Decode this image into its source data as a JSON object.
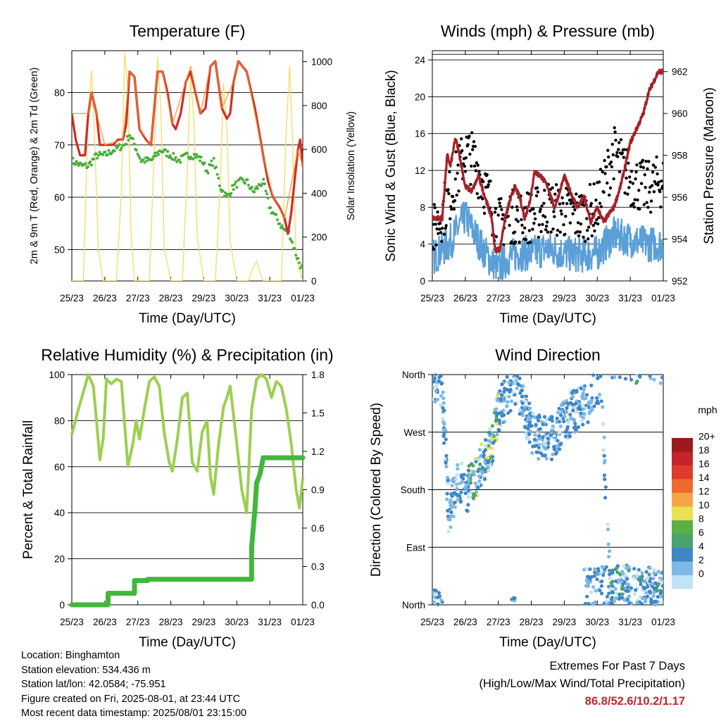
{
  "x_ticks": [
    "25/23",
    "26/23",
    "27/23",
    "28/23",
    "29/23",
    "30/23",
    "31/23",
    "01/23"
  ],
  "panels": {
    "temperature": {
      "title": "Temperature (F)",
      "xlabel": "Time (Day/UTC)",
      "ylabel": "2m & 9m T (Red, Orange) & 2m Td (Green)",
      "y2label": "Solar Insolation (Yellow)",
      "y_ticks": [
        "50",
        "60",
        "70",
        "80"
      ],
      "y2_ticks": [
        "0",
        "200",
        "400",
        "600",
        "800",
        "1000"
      ]
    },
    "winds": {
      "title": "Winds (mph) & Pressure (mb)",
      "xlabel": "Time (Day/UTC)",
      "ylabel": "Sonic Wind & Gust (Blue, Black)",
      "y2label": "Station Pressure (Maroon)",
      "y_ticks": [
        "0",
        "4",
        "8",
        "12",
        "16",
        "20",
        "24"
      ],
      "y2_ticks": [
        "952",
        "954",
        "956",
        "958",
        "960",
        "962"
      ]
    },
    "humidity": {
      "title": "Relative Humidity (%) & Precipitation (in)",
      "xlabel": "Time (Day/UTC)",
      "ylabel": "Percent & Total Rainfall",
      "y_ticks": [
        "0",
        "20",
        "40",
        "60",
        "80",
        "100"
      ],
      "y2_ticks": [
        "0.0",
        "0.3",
        "0.6",
        "0.9",
        "1.2",
        "1.5",
        "1.8"
      ]
    },
    "direction": {
      "title": "Wind Direction",
      "xlabel": "Time (Day/UTC)",
      "ylabel": "Direction (Colored By Speed)",
      "y_ticks": [
        "North",
        "East",
        "South",
        "West",
        "North"
      ],
      "legend_title": "mph",
      "legend_labels": [
        "20+",
        "18",
        "16",
        "14",
        "12",
        "10",
        "8",
        "6",
        "4",
        "2",
        "0"
      ],
      "legend_colors": [
        "#9c1a1c",
        "#c4242a",
        "#df3a2a",
        "#ee6a2c",
        "#f8a442",
        "#e9e052",
        "#5ab046",
        "#4aa36a",
        "#3f86c4",
        "#7fb8e4",
        "#bfe3f7"
      ]
    }
  },
  "info": {
    "location": "Location: Binghamton",
    "elevation": "Station elevation: 534.436 m",
    "latlon": "Station lat/lon: 42.0584; -75.951",
    "created": "Figure created on Fri, 2025-08-01, at 23:44 UTC",
    "recent": "Most recent data timestamp: 2025/08/01 23:15:00"
  },
  "extremes": {
    "title": "Extremes For Past 7 Days",
    "subtitle": "(High/Low/Max Wind/Total Precipitation)",
    "values": "86.8/52.6/10.2/1.17"
  },
  "colors": {
    "temp_2m": "#d42a22",
    "temp_9m": "#f0932a",
    "dewpoint": "#4aae3c",
    "insolation": "#f6dd6e",
    "wind": "#5b9fd8",
    "gust": "#000000",
    "pressure": "#a5222a",
    "rh": "#9ccf50",
    "rain": "#42b73c"
  },
  "chart_data": [
    {
      "type": "line",
      "title": "Temperature (F)",
      "xlabel": "Time (Day/UTC)",
      "ylabel": "2m & 9m T (Red, Orange) & 2m Td (Green)",
      "y2label": "Solar Insolation (Yellow)",
      "x_range": [
        0,
        7
      ],
      "ylim": [
        44,
        88
      ],
      "y2lim": [
        0,
        1050
      ],
      "series": [
        {
          "key": "t2m",
          "axis": "y",
          "color": "#d42a22",
          "width": 3.2,
          "x": [
            0,
            0.12,
            0.25,
            0.4,
            0.5,
            0.6,
            0.75,
            0.85,
            1,
            1.25,
            1.4,
            1.55,
            1.65,
            1.75,
            1.9,
            2.05,
            2.25,
            2.4,
            2.5,
            2.6,
            2.75,
            2.9,
            3.05,
            3.15,
            3.3,
            3.45,
            3.6,
            3.75,
            3.9,
            4.05,
            4.2,
            4.35,
            4.55,
            4.7,
            4.8,
            4.9,
            5.05,
            5.3,
            5.55,
            5.8,
            5.95,
            6.1,
            6.3,
            6.45,
            6.55,
            6.65,
            6.75,
            6.85,
            6.92,
            7
          ],
          "y": [
            76,
            71,
            68,
            68,
            76,
            80,
            76,
            70,
            70,
            70,
            71,
            71,
            74,
            84,
            83,
            73,
            71,
            70,
            77,
            84,
            84,
            80,
            74,
            73,
            76,
            82,
            84,
            80,
            76,
            77,
            85,
            86,
            77,
            75,
            76,
            82,
            86,
            84,
            77,
            68,
            63,
            60,
            58,
            56,
            53,
            57,
            63,
            69,
            71,
            66
          ]
        },
        {
          "key": "t9m",
          "axis": "y",
          "color": "#f0932a",
          "width": 1.6,
          "x": [
            0,
            0.5,
            0.6,
            0.75,
            1,
            1.55,
            1.75,
            1.9,
            2.05,
            2.4,
            2.6,
            2.75,
            3.05,
            3.45,
            3.6,
            3.9,
            4.2,
            4.35,
            4.55,
            4.9,
            5.05,
            5.3,
            5.8,
            6.1,
            6.45,
            6.85,
            7
          ],
          "y": [
            76,
            76,
            80,
            76,
            70,
            71,
            84,
            83,
            73,
            70,
            84,
            84,
            74,
            82,
            85,
            76,
            85,
            86,
            77,
            82,
            86,
            84,
            68,
            60,
            56,
            69,
            66
          ]
        },
        {
          "key": "td",
          "axis": "y",
          "color": "#4aae3c",
          "width": 2.4,
          "x": [
            0,
            0.3,
            0.5,
            0.75,
            1,
            1.25,
            1.6,
            1.75,
            1.9,
            2.1,
            2.4,
            2.7,
            3.0,
            3.25,
            3.5,
            3.75,
            3.95,
            4.1,
            4.3,
            4.5,
            4.7,
            4.9,
            5.1,
            5.3,
            5.5,
            5.8,
            6.0,
            6.2,
            6.4,
            6.6,
            6.8,
            7
          ],
          "y": [
            67,
            66,
            66,
            68,
            68,
            69,
            70,
            72,
            70,
            67,
            67,
            69,
            68,
            67,
            68,
            68,
            67,
            65,
            67,
            62,
            60,
            62,
            63,
            63,
            61,
            63,
            58,
            56,
            54,
            53,
            49,
            46
          ]
        },
        {
          "key": "sol",
          "axis": "y2",
          "color": "#f6dd6e",
          "width": 1.4,
          "x": [
            0,
            0.35,
            0.5,
            0.6,
            0.7,
            0.8,
            0.95,
            1.35,
            1.5,
            1.6,
            1.7,
            1.8,
            1.9,
            2.1,
            2.35,
            2.5,
            2.6,
            2.7,
            2.8,
            3.0,
            3.35,
            3.5,
            3.6,
            3.7,
            3.8,
            4.0,
            4.35,
            4.5,
            4.6,
            4.7,
            4.8,
            5.0,
            5.35,
            5.5,
            5.6,
            5.7,
            5.8,
            6.0,
            6.35,
            6.5,
            6.6,
            6.7,
            6.8,
            7
          ],
          "y": [
            0,
            0,
            780,
            960,
            620,
            150,
            0,
            0,
            400,
            1040,
            870,
            200,
            0,
            0,
            0,
            600,
            1020,
            780,
            150,
            0,
            0,
            500,
            950,
            730,
            200,
            0,
            0,
            450,
            900,
            700,
            180,
            0,
            0,
            60,
            90,
            40,
            0,
            0,
            0,
            700,
            980,
            600,
            100,
            0
          ]
        }
      ]
    },
    {
      "type": "scatter",
      "title": "Winds (mph) & Pressure (mb)",
      "xlabel": "Time (Day/UTC)",
      "ylabel": "Sonic Wind & Gust (Blue, Black)",
      "y2label": "Station Pressure (Maroon)",
      "x_range": [
        0,
        7
      ],
      "ylim": [
        0,
        25
      ],
      "y2lim": [
        952,
        963
      ],
      "series": [
        {
          "key": "wind",
          "axis": "y",
          "color": "#5b9fd8",
          "x": [
            0,
            0.5,
            1,
            1.3,
            1.6,
            2,
            2.3,
            2.6,
            3,
            3.5,
            4,
            4.5,
            5,
            5.5,
            6,
            6.5,
            7
          ],
          "y": [
            2.5,
            4,
            7,
            5,
            3,
            1.2,
            2.5,
            3,
            3,
            3.5,
            3,
            2.8,
            3,
            5,
            4.5,
            4,
            4
          ]
        },
        {
          "key": "gust",
          "axis": "y",
          "color": "#000000",
          "x": [
            0,
            0.5,
            1,
            1.3,
            1.6,
            2,
            2.3,
            2.6,
            3,
            3.5,
            4,
            4.5,
            5,
            5.5,
            6,
            6.5,
            7
          ],
          "y": [
            5,
            9,
            14,
            13,
            10,
            6,
            7,
            7,
            7,
            8,
            7.5,
            7,
            8,
            14,
            11,
            10,
            11
          ]
        },
        {
          "key": "pres",
          "axis": "y2",
          "color": "#a5222a",
          "x": [
            0,
            0.3,
            0.45,
            0.55,
            0.7,
            0.8,
            1.0,
            1.2,
            1.4,
            1.6,
            1.8,
            1.9,
            2.05,
            2.2,
            2.35,
            2.5,
            2.65,
            2.8,
            2.95,
            3.1,
            3.3,
            3.5,
            3.7,
            3.85,
            4.0,
            4.2,
            4.4,
            4.6,
            4.8,
            5.0,
            5.2,
            5.35,
            5.5,
            5.7,
            5.85,
            6.0,
            6.2,
            6.4,
            6.55,
            6.7,
            6.85,
            7
          ],
          "y": [
            955,
            955,
            958,
            957.5,
            958.8,
            958.2,
            956.5,
            956.3,
            957,
            956,
            955,
            953.5,
            953.5,
            955,
            955.8,
            956.5,
            956,
            955,
            955.8,
            957.2,
            957,
            956.5,
            955.5,
            956.2,
            957,
            956.2,
            955.5,
            956,
            954.8,
            955.5,
            954.8,
            955.2,
            955.5,
            956.5,
            957.5,
            958.6,
            959.3,
            960,
            961,
            961.5,
            962,
            962
          ]
        }
      ]
    },
    {
      "type": "line",
      "title": "Relative Humidity (%) & Precipitation (in)",
      "xlabel": "Time (Day/UTC)",
      "ylabel": "Percent & Total Rainfall",
      "x_range": [
        0,
        7
      ],
      "ylim": [
        0,
        100
      ],
      "y2lim": [
        0,
        1.8
      ],
      "series": [
        {
          "key": "rh",
          "axis": "y",
          "color": "#9ccf50",
          "width": 4,
          "x": [
            0,
            0.2,
            0.4,
            0.5,
            0.65,
            0.75,
            0.85,
            0.95,
            1.05,
            1.2,
            1.35,
            1.5,
            1.7,
            1.85,
            1.95,
            2.05,
            2.2,
            2.35,
            2.5,
            2.65,
            2.8,
            2.95,
            3.05,
            3.2,
            3.35,
            3.5,
            3.65,
            3.8,
            3.95,
            4.1,
            4.2,
            4.3,
            4.45,
            4.6,
            4.7,
            4.8,
            5.0,
            5.15,
            5.3,
            5.45,
            5.6,
            5.75,
            5.9,
            6.05,
            6.2,
            6.35,
            6.5,
            6.65,
            6.8,
            6.9,
            7
          ],
          "y": [
            74,
            85,
            95,
            100,
            95,
            80,
            63,
            72,
            98,
            96,
            98,
            97,
            60,
            70,
            80,
            72,
            85,
            97,
            99,
            95,
            75,
            62,
            58,
            72,
            90,
            92,
            62,
            58,
            75,
            80,
            56,
            48,
            70,
            86,
            90,
            95,
            70,
            50,
            40,
            85,
            98,
            100,
            98,
            90,
            97,
            95,
            85,
            70,
            50,
            42,
            55
          ]
        },
        {
          "key": "rain",
          "axis": "y2",
          "color": "#42b73c",
          "width": 7,
          "x": [
            0,
            1.1,
            1.1,
            1.9,
            1.9,
            2.3,
            2.3,
            5.45,
            5.45,
            5.55,
            5.6,
            5.7,
            5.75,
            5.8,
            5.85,
            7
          ],
          "y": [
            0,
            0,
            0.09,
            0.09,
            0.19,
            0.19,
            0.2,
            0.2,
            0.45,
            0.75,
            0.95,
            1.02,
            1.08,
            1.15,
            1.15,
            1.15
          ]
        }
      ]
    },
    {
      "type": "scatter",
      "title": "Wind Direction",
      "xlabel": "Time (Day/UTC)",
      "ylabel": "Direction (Colored By Speed)",
      "x_range": [
        0,
        7
      ],
      "ylim": [
        0,
        360
      ],
      "y_tick_degrees": [
        0,
        90,
        180,
        270,
        360
      ],
      "trend": {
        "x": [
          0,
          0.3,
          0.5,
          0.7,
          0.8,
          1.0,
          1.2,
          1.4,
          1.6,
          1.8,
          2.0,
          2.2,
          2.5,
          2.8,
          3.0,
          3.3,
          3.6,
          3.9,
          4.2,
          4.5,
          4.8,
          5.1,
          5.4,
          5.7,
          6.0,
          6.3,
          6.6,
          7
        ],
        "y": [
          355,
          340,
          140,
          180,
          200,
          175,
          190,
          210,
          230,
          250,
          305,
          320,
          340,
          310,
          270,
          260,
          260,
          280,
          300,
          310,
          320,
          355,
          20,
          30,
          25,
          20,
          15,
          10
        ]
      }
    }
  ]
}
